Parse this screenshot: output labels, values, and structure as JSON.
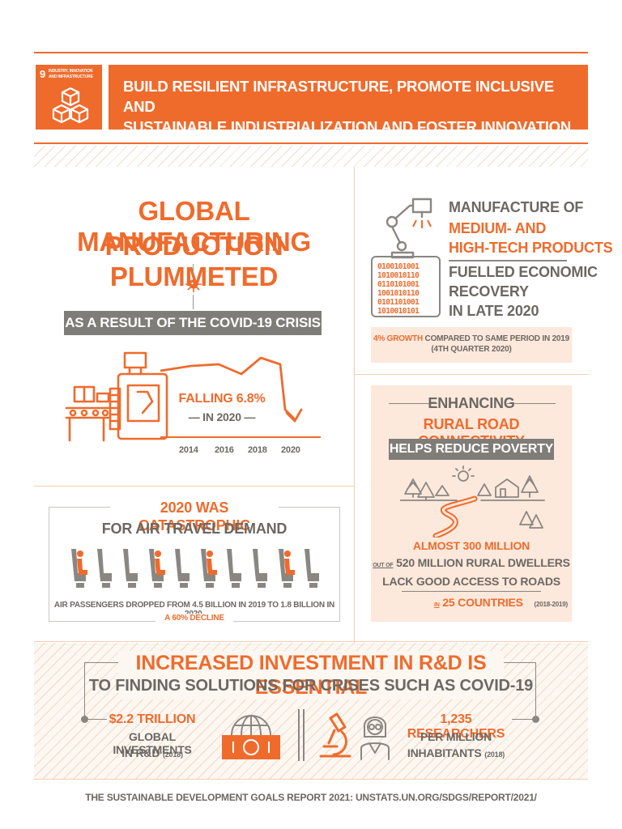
{
  "header": {
    "goal_number": "9",
    "goal_name_line1": "INDUSTRY, INNOVATION",
    "goal_name_line2": "AND INFRASTRUCTURE",
    "icon": "cubes-icon",
    "title_line1": "BUILD RESILIENT INFRASTRUCTURE, PROMOTE INCLUSIVE AND",
    "title_line2": "SUSTAINABLE INDUSTRIALIZATION AND FOSTER INNOVATION"
  },
  "manufacturing": {
    "headline_line1": "GLOBAL MANUFACTURING",
    "headline_line2": "PRODUCTION PLUMMETED",
    "covid_banner": "AS A RESULT OF THE COVID-19 CRISIS",
    "falling_label": "FALLING 6.8%",
    "falling_year": "— IN 2020 —",
    "years": [
      "2014",
      "2016",
      "2018",
      "2020"
    ]
  },
  "hightech": {
    "line1": "MANUFACTURE OF",
    "line2": "MEDIUM- AND",
    "line3": "HIGH-TECH PRODUCTS",
    "line4": "FUELLED ECONOMIC",
    "line5": "RECOVERY",
    "line6": "IN LATE 2020",
    "growth_highlight": "4% GROWTH",
    "growth_rest": " COMPARED TO SAME PERIOD IN 2019",
    "growth_period": "(4TH QUARTER 2020)"
  },
  "air_travel": {
    "title_line1": "2020 WAS CATASTROPHIC",
    "title_line2": "FOR AIR TRAVEL DEMAND",
    "note_line1": "AIR PASSENGERS DROPPED FROM 4.5 BILLION IN 2019 TO 1.8 BILLION IN 2020,",
    "note_line2": "A 60% DECLINE",
    "seats_total": 10,
    "seats_occupied": [
      0,
      3,
      5,
      8
    ]
  },
  "rural": {
    "line1": "ENHANCING",
    "line2": "RURAL ROAD CONNECTIVITY",
    "banner": "HELPS REDUCE POVERTY",
    "stat1": "ALMOST 300 MILLION",
    "stat2_prefix": "OUT OF",
    "stat2": "520 MILLION RURAL DWELLERS",
    "stat3": "LACK GOOD ACCESS TO ROADS",
    "stat4_prefix": "IN",
    "stat4": "25 COUNTRIES",
    "stat4_years": "(2018-2019)"
  },
  "rnd": {
    "title": "INCREASED INVESTMENT IN R&D IS ESSENTIAL",
    "subtitle": "TO FINDING SOLUTIONS FOR CRISES SUCH AS COVID-19",
    "invest_value": "$2.2 TRILLION",
    "invest_line2": "GLOBAL INVESTMENTS",
    "invest_line3": "IN R&D",
    "invest_year": "(2018)",
    "research_value": "1,235 RESEARCHERS",
    "research_line2": "PER MILLION",
    "research_line3": "INHABITANTS",
    "research_year": "(2018)"
  },
  "footer": {
    "source": "THE SUSTAINABLE DEVELOPMENT GOALS REPORT 2021: UNSTATS.UN.ORG/SDGS/REPORT/2021/"
  },
  "colors": {
    "orange": "#ef6b2c",
    "grey": "#7f7d78",
    "peach": "#fde8dc"
  }
}
